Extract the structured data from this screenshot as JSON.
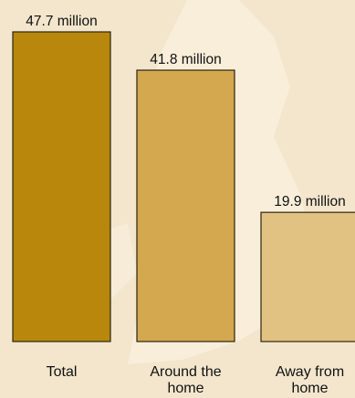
{
  "chart_data": {
    "type": "bar",
    "title": "",
    "xlabel": "",
    "ylabel": "",
    "categories": [
      [
        "Total"
      ],
      [
        "Around the",
        "home"
      ],
      [
        "Away from",
        "home"
      ]
    ],
    "values": [
      47.7,
      41.8,
      19.9
    ],
    "value_labels": [
      "47.7 million",
      "41.8 million",
      "19.9 million"
    ],
    "unit": "million",
    "ylim": [
      0,
      47.7
    ],
    "grid": false,
    "legend": "none",
    "colors": [
      "#b8870c",
      "#d4a84f",
      "#e2c282"
    ],
    "background": "#f3e6cd"
  }
}
